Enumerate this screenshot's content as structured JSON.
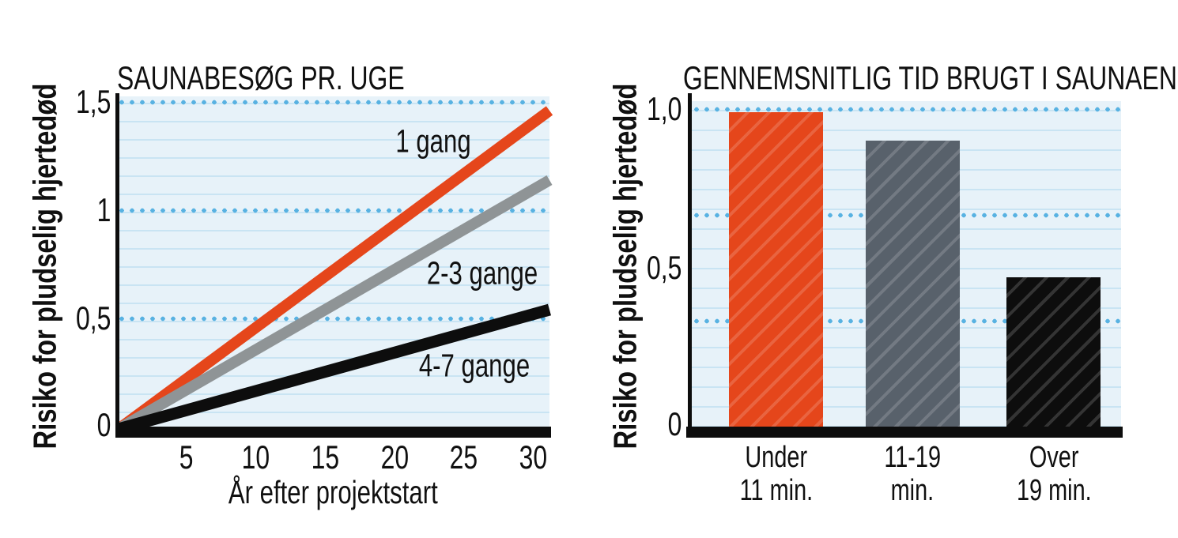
{
  "left_chart": {
    "title": "SAUNABESØG PR. UGE",
    "y_axis_title": "Risiko for pludselig hjertedød",
    "x_axis_title": "År efter projektstart",
    "y_tick_labels": [
      "1,5",
      "1",
      "0,5",
      "0"
    ],
    "x_tick_labels": [
      "5",
      "10",
      "15",
      "20",
      "25",
      "30"
    ],
    "line_labels": [
      "1 gang",
      "2-3 gange",
      "4-7 gange"
    ]
  },
  "right_chart": {
    "title": "GENNEMSNITLIG TID BRUGT I SAUNAEN",
    "y_axis_title": "Risiko for pludselig hjertedød",
    "y_tick_labels": [
      "1,0",
      "0,5",
      "0"
    ],
    "bars": [
      {
        "label_line1": "Under",
        "label_line2": "11 min."
      },
      {
        "label_line1": "11-19",
        "label_line2": "min."
      },
      {
        "label_line1": "Over",
        "label_line2": "19 min."
      }
    ]
  },
  "colors": {
    "orange": "#e5461b",
    "gray_line": "#8f9496",
    "gray_bar": "#58616b",
    "black": "#0d0d0d",
    "plot_background": "#e7f2f9",
    "thin_rule": "#c9e4f3",
    "dotted_gridline": "#58b2e2",
    "text": "#101010"
  },
  "chart_data": [
    {
      "type": "line",
      "title": "SAUNABESØG PR. UGE",
      "xlabel": "År efter projektstart",
      "ylabel": "Risiko for pludselig hjertedød",
      "xlim": [
        0,
        31
      ],
      "ylim": [
        0,
        1.53
      ],
      "x_ticks": [
        5,
        10,
        15,
        20,
        25,
        30
      ],
      "y_ticks": [
        0,
        0.5,
        1,
        1.5
      ],
      "grid": "dotted horizontal lines at 0.5, 1.0, 1.5 plus thin rules",
      "legend_position": "labels next to lines",
      "series": [
        {
          "name": "1 gang",
          "color": "#e5461b",
          "x": [
            0,
            31
          ],
          "y": [
            0,
            1.46
          ]
        },
        {
          "name": "2-3 gange",
          "color": "#8f9496",
          "x": [
            0,
            31
          ],
          "y": [
            0,
            1.14
          ]
        },
        {
          "name": "4-7 gange",
          "color": "#0d0d0d",
          "x": [
            0,
            31
          ],
          "y": [
            0,
            0.54
          ]
        }
      ]
    },
    {
      "type": "bar",
      "title": "GENNEMSNITLIG TID BRUGT I SAUNAEN",
      "ylabel": "Risiko for pludselig hjertedød",
      "categories": [
        "Under 11 min.",
        "11-19 min.",
        "Over 19 min."
      ],
      "values": [
        0.99,
        0.9,
        0.47
      ],
      "colors": [
        "#e5461b",
        "#58616b",
        "#0d0d0d"
      ],
      "ylim": [
        0,
        1.03
      ],
      "y_ticks": [
        0,
        0.5,
        1.0
      ],
      "grid": "dotted horizontal lines at 1/3, 2/3, 1.0 plus thin rules",
      "bar_texture": "diagonal hatch"
    }
  ]
}
